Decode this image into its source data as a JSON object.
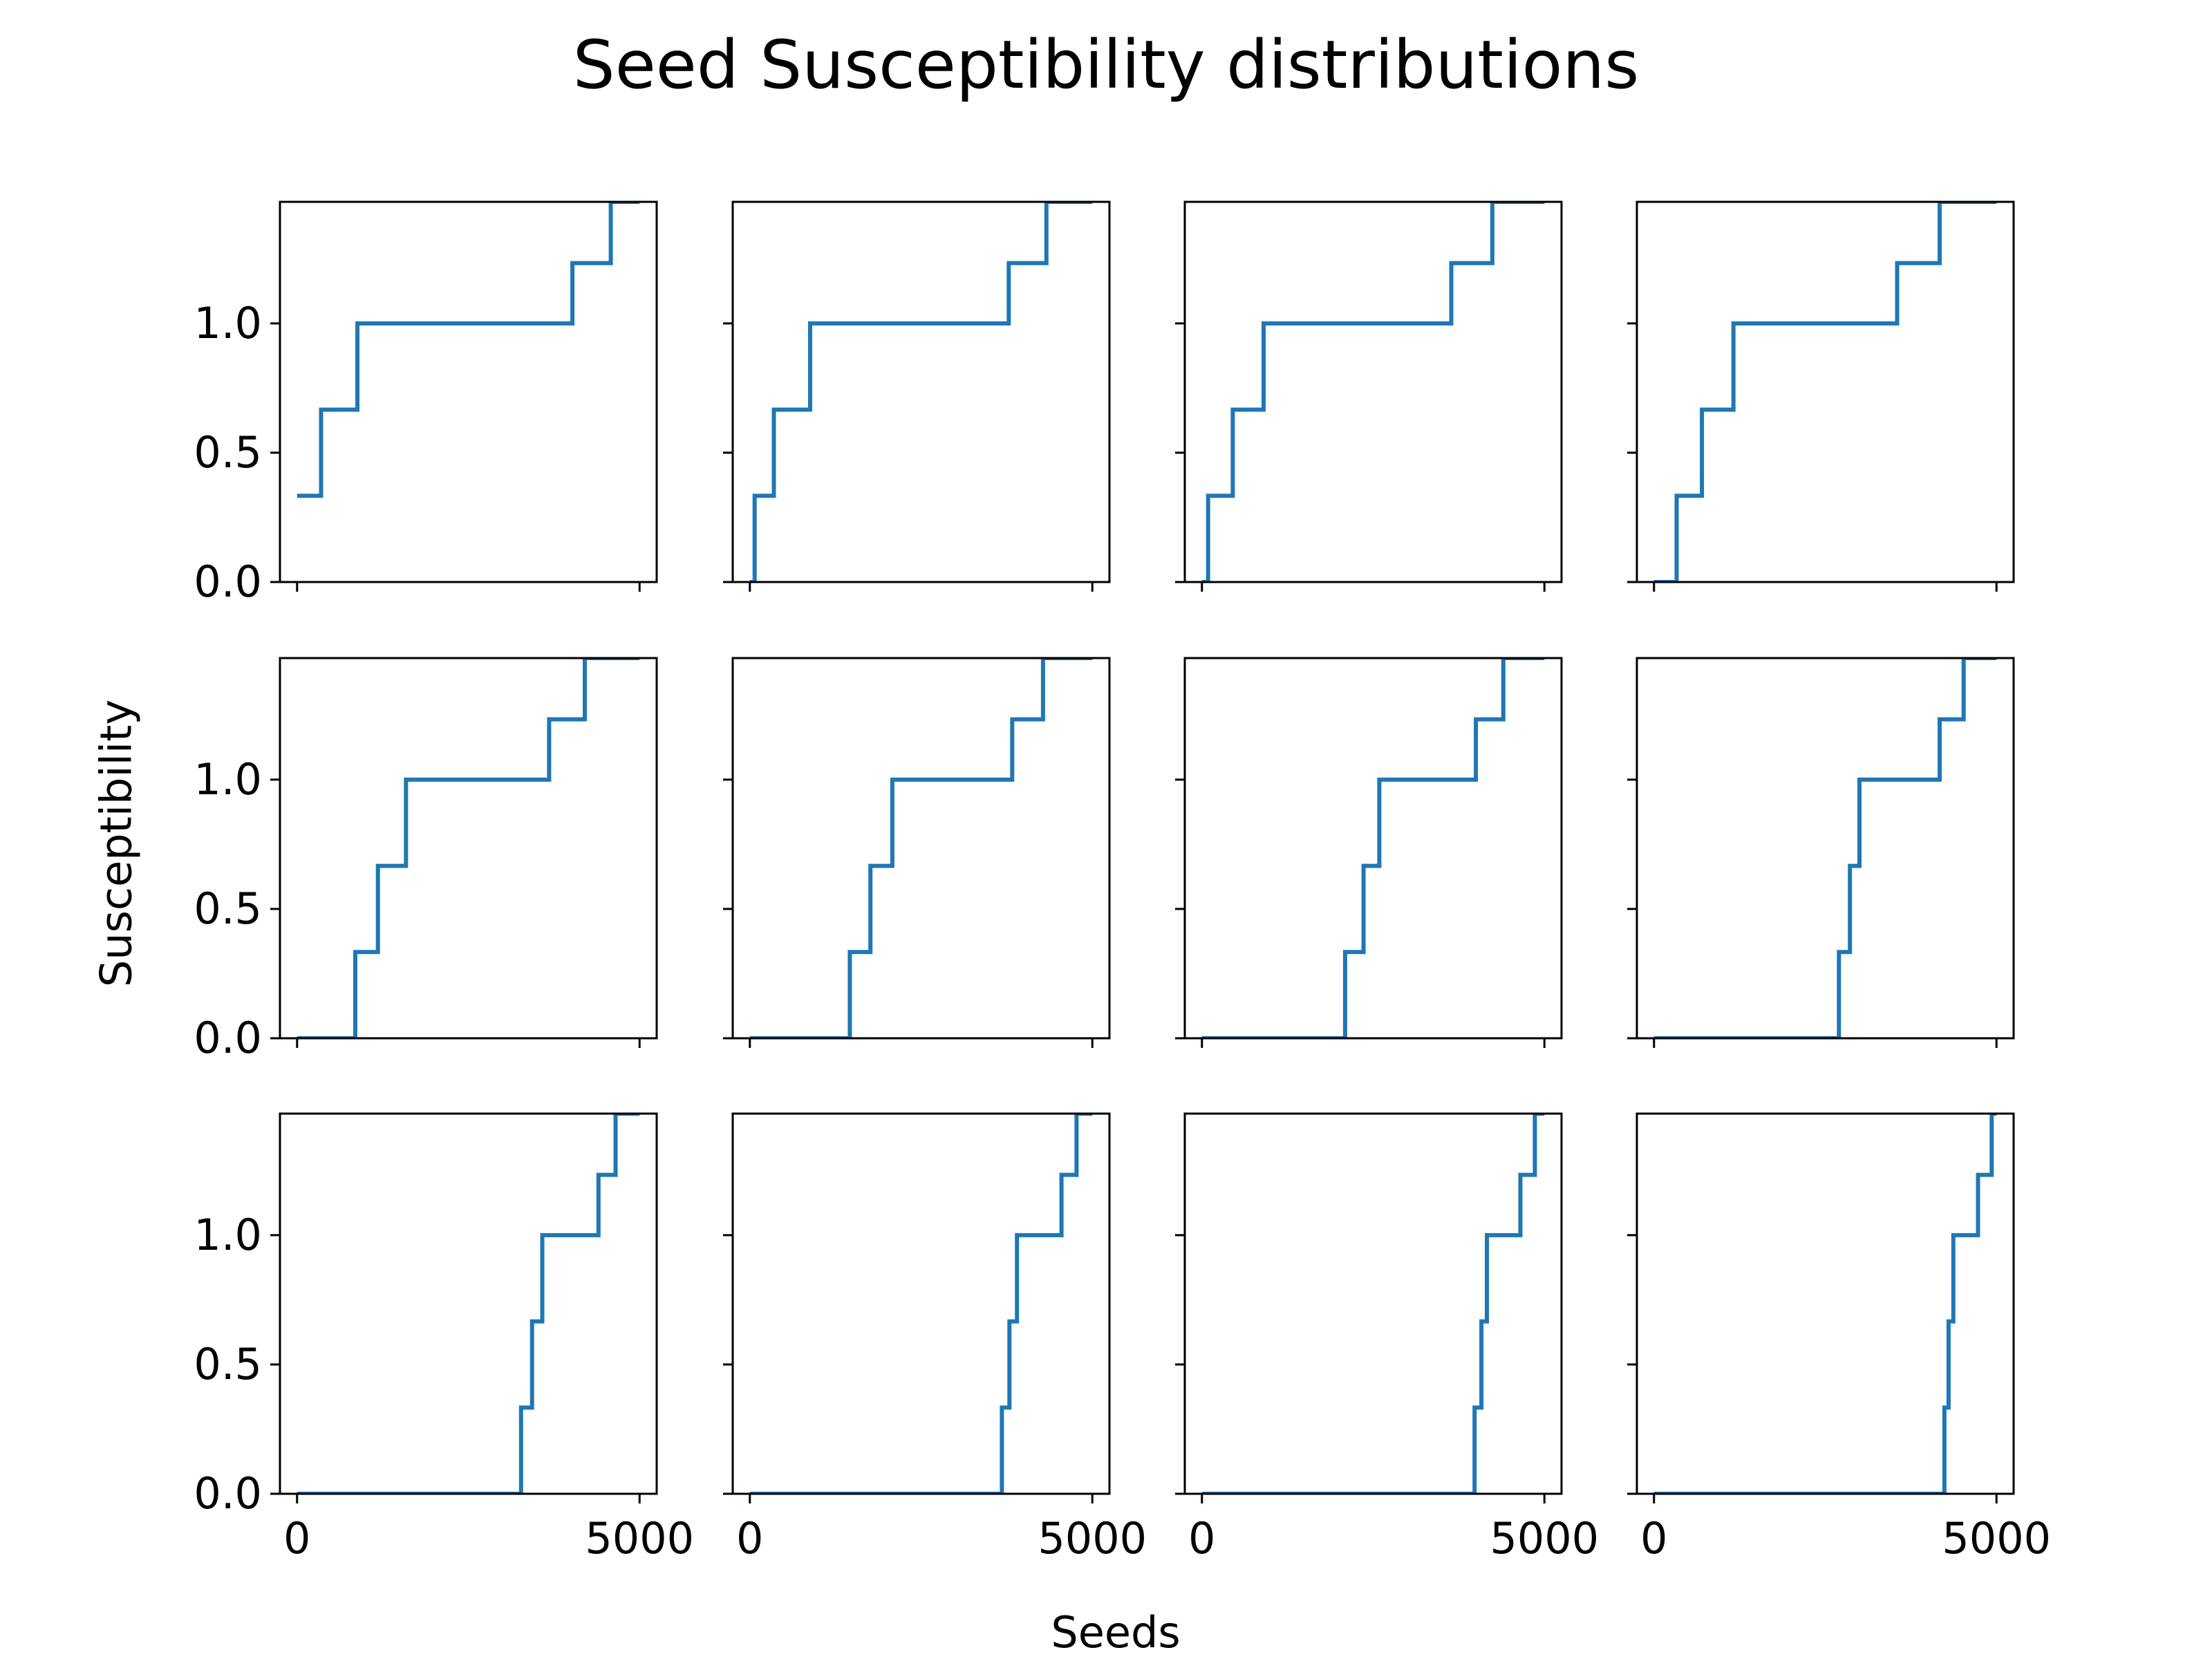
{
  "figure": {
    "title": "Seed Susceptibility distributions",
    "ylabel": "Susceptibility",
    "xlabel": "Seeds",
    "line_color": "#1f77b4"
  },
  "chart_data": {
    "type": "line",
    "subtype": "step",
    "grid": false,
    "rows": 3,
    "cols": 4,
    "sharex": true,
    "sharey": true,
    "xlim": [
      -250,
      5250
    ],
    "ylim": [
      0,
      1.47
    ],
    "xticks": [
      0,
      5000
    ],
    "xtick_labels": [
      "0",
      "5000"
    ],
    "yticks": [
      0.0,
      0.5,
      1.0
    ],
    "ytick_labels": [
      "0.0",
      "0.5",
      "1.0"
    ],
    "levels": [
      0,
      0.3333,
      0.6667,
      1.0,
      1.2333,
      1.47
    ],
    "panels": [
      {
        "thresholds": [
          -1,
          350,
          880,
          4020,
          4580
        ]
      },
      {
        "thresholds": [
          70,
          350,
          880,
          3780,
          4330
        ]
      },
      {
        "thresholds": [
          90,
          450,
          900,
          3640,
          4240
        ]
      },
      {
        "thresholds": [
          330,
          700,
          1160,
          3550,
          4170
        ]
      },
      {
        "thresholds": [
          850,
          1180,
          1590,
          3680,
          4200
        ]
      },
      {
        "thresholds": [
          1460,
          1760,
          2080,
          3830,
          4280
        ]
      },
      {
        "thresholds": [
          2090,
          2360,
          2590,
          4000,
          4400
        ]
      },
      {
        "thresholds": [
          2700,
          2860,
          3000,
          4170,
          4520
        ]
      },
      {
        "thresholds": [
          3270,
          3430,
          3580,
          4400,
          4650
        ]
      },
      {
        "thresholds": [
          3680,
          3790,
          3900,
          4550,
          4770
        ]
      },
      {
        "thresholds": [
          3980,
          4080,
          4160,
          4650,
          4860
        ]
      },
      {
        "thresholds": [
          4240,
          4300,
          4370,
          4730,
          4930
        ]
      }
    ]
  }
}
